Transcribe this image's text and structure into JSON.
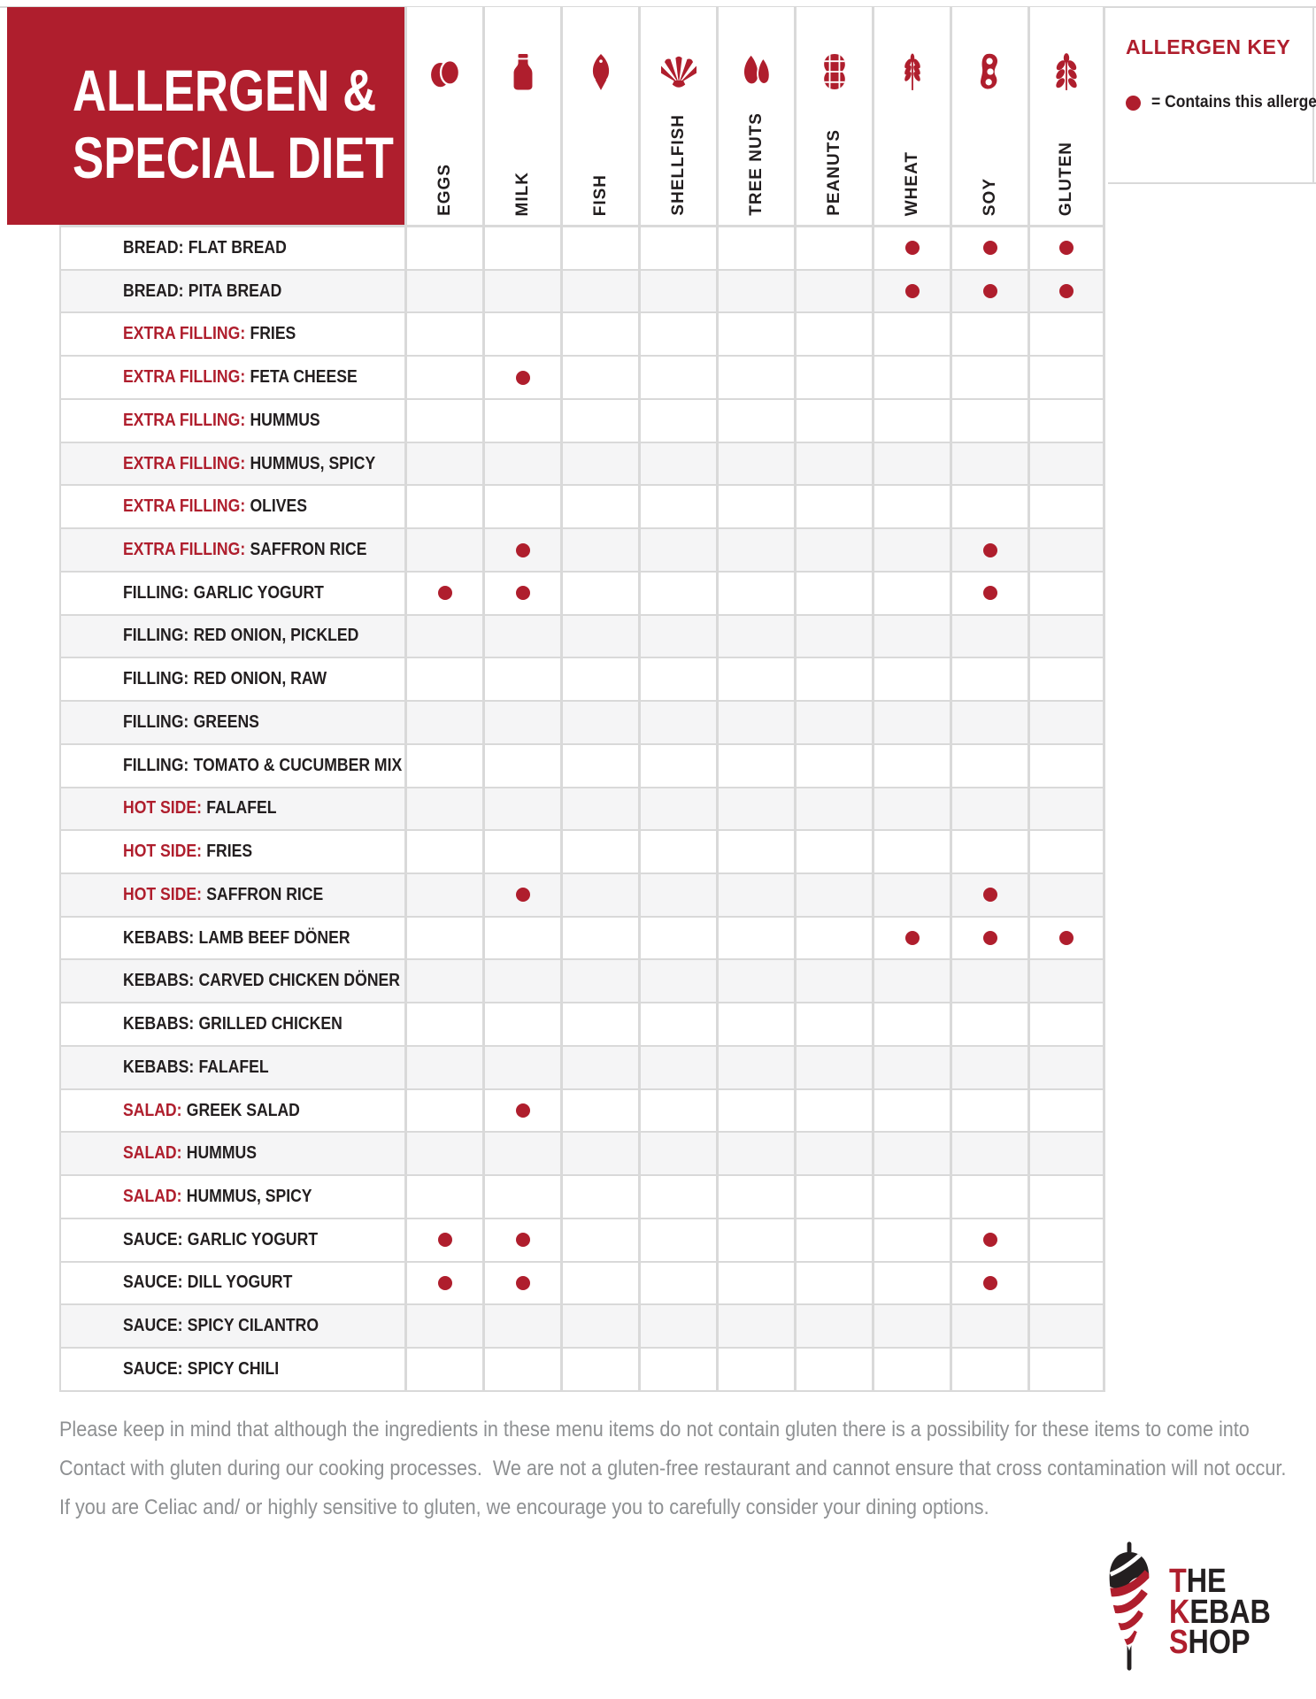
{
  "header": {
    "title_line1": "ALLERGEN &",
    "title_line2": "SPECIAL DIET"
  },
  "allergen_key": {
    "title": "ALLERGEN KEY",
    "legend": "= Contains this allergen"
  },
  "columns": [
    {
      "id": "eggs",
      "label": "EGGS",
      "icon": "eggs-icon"
    },
    {
      "id": "milk",
      "label": "MILK",
      "icon": "milk-bottle-icon"
    },
    {
      "id": "fish",
      "label": "FISH",
      "icon": "fish-icon"
    },
    {
      "id": "shellfish",
      "label": "SHELLFISH",
      "icon": "shellfish-icon"
    },
    {
      "id": "tree_nuts",
      "label": "TREE NUTS",
      "icon": "tree-nuts-icon"
    },
    {
      "id": "peanuts",
      "label": "PEANUTS",
      "icon": "peanut-icon"
    },
    {
      "id": "wheat",
      "label": "WHEAT",
      "icon": "wheat-icon"
    },
    {
      "id": "soy",
      "label": "SOY",
      "icon": "soy-pod-icon"
    },
    {
      "id": "gluten",
      "label": "GLUTEN",
      "icon": "gluten-grain-icon"
    }
  ],
  "rows": [
    {
      "prefix": "BREAD:",
      "name": "FLAT BREAD",
      "red_prefix": false,
      "shaded": false,
      "allergens": [
        "wheat",
        "soy",
        "gluten"
      ]
    },
    {
      "prefix": "BREAD:",
      "name": "PITA BREAD",
      "red_prefix": false,
      "shaded": true,
      "allergens": [
        "wheat",
        "soy",
        "gluten"
      ]
    },
    {
      "prefix": "EXTRA FILLING:",
      "name": "FRIES",
      "red_prefix": true,
      "shaded": false,
      "allergens": []
    },
    {
      "prefix": "EXTRA FILLING:",
      "name": "FETA CHEESE",
      "red_prefix": true,
      "shaded": false,
      "allergens": [
        "milk"
      ]
    },
    {
      "prefix": "EXTRA FILLING:",
      "name": "HUMMUS",
      "red_prefix": true,
      "shaded": false,
      "allergens": []
    },
    {
      "prefix": "EXTRA FILLING:",
      "name": "HUMMUS, SPICY",
      "red_prefix": true,
      "shaded": true,
      "allergens": []
    },
    {
      "prefix": "EXTRA FILLING:",
      "name": "OLIVES",
      "red_prefix": true,
      "shaded": false,
      "allergens": []
    },
    {
      "prefix": "EXTRA FILLING:",
      "name": "SAFFRON RICE",
      "red_prefix": true,
      "shaded": true,
      "allergens": [
        "milk",
        "soy"
      ]
    },
    {
      "prefix": "FILLING:",
      "name": "GARLIC YOGURT",
      "red_prefix": false,
      "shaded": false,
      "allergens": [
        "eggs",
        "milk",
        "soy"
      ]
    },
    {
      "prefix": "FILLING:",
      "name": "RED ONION, PICKLED",
      "red_prefix": false,
      "shaded": true,
      "allergens": []
    },
    {
      "prefix": "FILLING:",
      "name": "RED ONION, RAW",
      "red_prefix": false,
      "shaded": false,
      "allergens": []
    },
    {
      "prefix": "FILLING:",
      "name": "GREENS",
      "red_prefix": false,
      "shaded": true,
      "allergens": []
    },
    {
      "prefix": "FILLING:",
      "name": "TOMATO & CUCUMBER MIX",
      "red_prefix": false,
      "shaded": false,
      "allergens": []
    },
    {
      "prefix": "HOT SIDE:",
      "name": "FALAFEL",
      "red_prefix": true,
      "shaded": true,
      "allergens": []
    },
    {
      "prefix": "HOT SIDE:",
      "name": "FRIES",
      "red_prefix": true,
      "shaded": false,
      "allergens": []
    },
    {
      "prefix": "HOT SIDE:",
      "name": "SAFFRON RICE",
      "red_prefix": true,
      "shaded": true,
      "allergens": [
        "milk",
        "soy"
      ]
    },
    {
      "prefix": "KEBABS:",
      "name": "LAMB BEEF DÖNER",
      "red_prefix": false,
      "shaded": false,
      "allergens": [
        "wheat",
        "soy",
        "gluten"
      ]
    },
    {
      "prefix": "KEBABS:",
      "name": "CARVED CHICKEN DÖNER",
      "red_prefix": false,
      "shaded": true,
      "allergens": []
    },
    {
      "prefix": "KEBABS:",
      "name": "GRILLED CHICKEN",
      "red_prefix": false,
      "shaded": false,
      "allergens": []
    },
    {
      "prefix": "KEBABS:",
      "name": "FALAFEL",
      "red_prefix": false,
      "shaded": true,
      "allergens": []
    },
    {
      "prefix": "SALAD:",
      "name": "GREEK SALAD",
      "red_prefix": true,
      "shaded": false,
      "allergens": [
        "milk"
      ]
    },
    {
      "prefix": "SALAD:",
      "name": "HUMMUS",
      "red_prefix": true,
      "shaded": true,
      "allergens": []
    },
    {
      "prefix": "SALAD:",
      "name": "HUMMUS, SPICY",
      "red_prefix": true,
      "shaded": false,
      "allergens": []
    },
    {
      "prefix": "SAUCE:",
      "name": "GARLIC YOGURT",
      "red_prefix": false,
      "shaded": false,
      "allergens": [
        "eggs",
        "milk",
        "soy"
      ]
    },
    {
      "prefix": "SAUCE:",
      "name": "DILL YOGURT",
      "red_prefix": false,
      "shaded": false,
      "allergens": [
        "eggs",
        "milk",
        "soy"
      ]
    },
    {
      "prefix": "SAUCE:",
      "name": "SPICY CILANTRO",
      "red_prefix": false,
      "shaded": true,
      "allergens": []
    },
    {
      "prefix": "SAUCE:",
      "name": "SPICY CHILI",
      "red_prefix": false,
      "shaded": false,
      "allergens": []
    }
  ],
  "footer": {
    "lines": [
      "Please keep in mind that although the ingredients in these menu items do not contain gluten there is a possibility for these items to come into",
      "Contact with gluten during our cooking processes.  We are not a gluten-free restaurant and cannot ensure that cross contamination will not occur.",
      "If you are Celiac and/ or highly sensitive to gluten, we encourage you to carefully consider your dining options."
    ]
  },
  "logo": {
    "lines": [
      {
        "first": "T",
        "rest": "HE"
      },
      {
        "first": "K",
        "rest": "EBAB"
      },
      {
        "first": "S",
        "rest": "HOP"
      }
    ]
  },
  "colors": {
    "red": "#AF1E2D",
    "row_shade": "#F5F5F6",
    "grid": "#D9D9D9",
    "ink": "#221E1F",
    "footer_gray": "#8E9092",
    "logo_black": "#231F20"
  }
}
